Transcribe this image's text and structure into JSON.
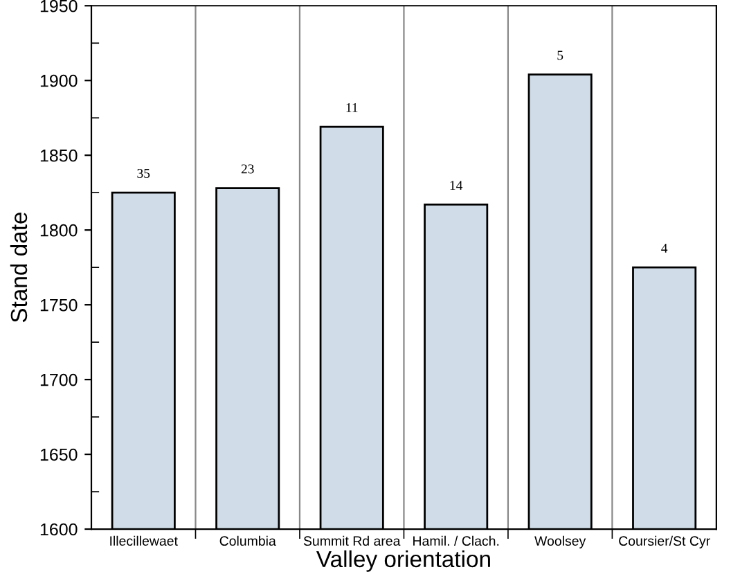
{
  "chart_data": {
    "type": "bar",
    "xlabel": "Valley orientation",
    "ylabel": "Stand date",
    "categories": [
      "Illecillewaet",
      "Columbia",
      "Summit Rd area",
      "Hamil. / Clach.",
      "Woolsey",
      "Coursier/St Cyr"
    ],
    "values": [
      1825,
      1828,
      1869,
      1817,
      1904,
      1775
    ],
    "annotations": [
      {
        "text": "35",
        "x": "Illecillewaet",
        "y": 1825
      },
      {
        "text": "23",
        "x": "Columbia",
        "y": 1828
      },
      {
        "text": "11",
        "x": "Summit Rd area",
        "y": 1869
      },
      {
        "text": "14",
        "x": "Hamil. / Clach.",
        "y": 1817
      },
      {
        "text": "5",
        "x": "Woolsey",
        "y": 1904
      },
      {
        "text": "4",
        "x": "Coursier/St Cyr",
        "y": 1775
      }
    ],
    "color": "#d0dde8",
    "ylim": [
      1600,
      1950
    ],
    "yticks": [
      1600,
      {
        "value": 1625,
        "label": null
      },
      1650,
      {
        "value": 1675,
        "label": null
      },
      1700,
      {
        "value": 1725,
        "label": null
      },
      1750,
      {
        "value": 1775,
        "label": null
      },
      1800,
      {
        "value": 1825,
        "label": null
      },
      1850,
      {
        "value": 1875,
        "label": null
      },
      1900,
      {
        "value": 1925,
        "label": null
      },
      1950
    ],
    "grid": "x"
  }
}
